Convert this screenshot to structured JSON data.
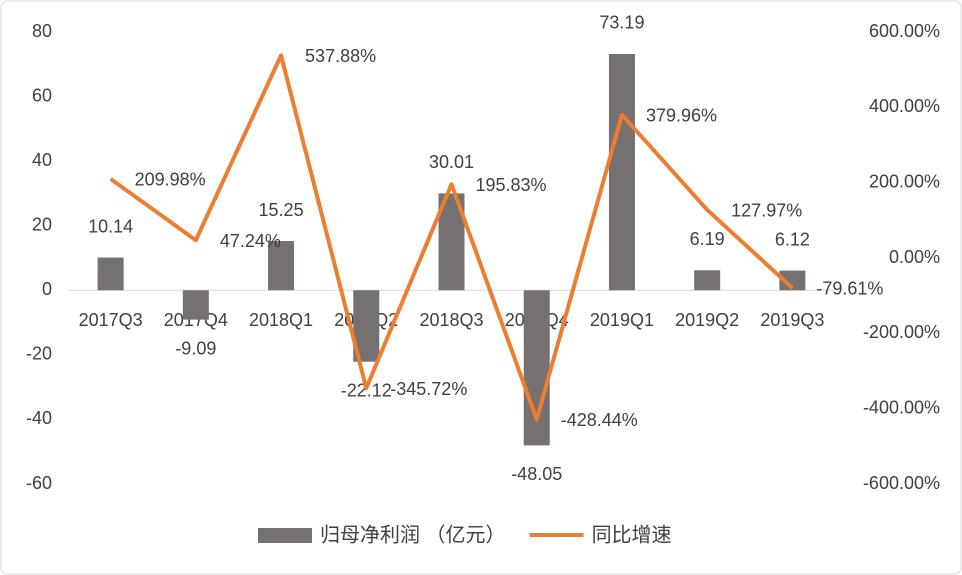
{
  "chart_data": {
    "type": "bar",
    "categories": [
      "2017Q3",
      "2017Q4",
      "2018Q1",
      "2018Q2",
      "2018Q3",
      "2018Q4",
      "2019Q1",
      "2019Q2",
      "2019Q3"
    ],
    "series": [
      {
        "name": "归母净利润 （亿元）",
        "type": "bar",
        "color": "#767171",
        "axis": "y",
        "values": [
          10.14,
          -9.09,
          15.25,
          -22.12,
          30.01,
          -48.05,
          73.19,
          6.19,
          6.12
        ]
      },
      {
        "name": "同比增速",
        "type": "line",
        "color": "#ED7D31",
        "axis": "y2",
        "values": [
          209.98,
          47.24,
          537.88,
          -345.72,
          195.83,
          -428.44,
          379.96,
          127.97,
          -79.61
        ],
        "value_labels": [
          "209.98%",
          "47.24%",
          "537.88%",
          "-345.72%",
          "195.83%",
          "-428.44%",
          "379.96%",
          "127.97%",
          "-79.61%"
        ]
      }
    ],
    "ylim": [
      -60,
      80
    ],
    "yticks": [
      -60,
      -40,
      -20,
      0,
      20,
      40,
      60,
      80
    ],
    "y2lim": [
      -600,
      600
    ],
    "y2ticks": [
      {
        "value": -600,
        "label": "-600.00%"
      },
      {
        "value": -400,
        "label": "-400.00%"
      },
      {
        "value": -200,
        "label": "-200.00%"
      },
      {
        "value": 0,
        "label": "0.00%"
      },
      {
        "value": 200,
        "label": "200.00%"
      },
      {
        "value": 400,
        "label": "400.00%"
      },
      {
        "value": 600,
        "label": "600.00%"
      }
    ],
    "legend": "bottom"
  }
}
